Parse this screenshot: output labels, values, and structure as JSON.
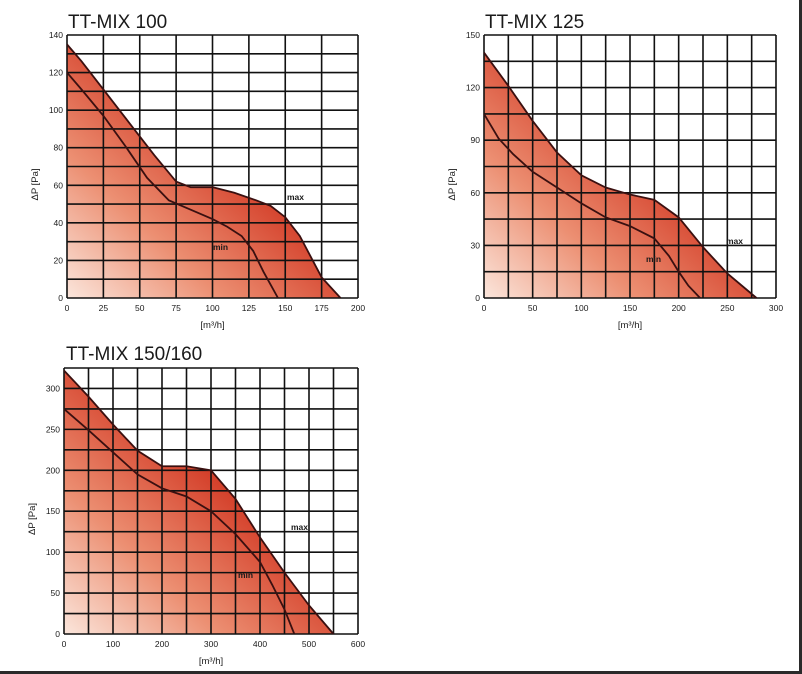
{
  "chart_data": [
    {
      "type": "area",
      "title": "TT-MIX 100",
      "xlabel": "[m³/h]",
      "ylabel": "ΔP [Pa]",
      "xlim": [
        0,
        200
      ],
      "ylim": [
        0,
        140
      ],
      "x_ticks": [
        0,
        25,
        50,
        75,
        100,
        125,
        150,
        175,
        200
      ],
      "y_ticks": [
        0,
        20,
        40,
        60,
        80,
        100,
        120,
        140
      ],
      "grid": true,
      "fill_gradient": [
        "#fbe6dc",
        "#d0321e"
      ],
      "series": [
        {
          "name": "max",
          "x": [
            0,
            10,
            25,
            50,
            60,
            75,
            85,
            100,
            115,
            130,
            140,
            150,
            160,
            175,
            188
          ],
          "y": [
            135,
            126,
            111,
            86,
            76,
            62,
            59,
            59,
            56,
            52,
            49,
            43,
            33,
            11,
            0
          ]
        },
        {
          "name": "min",
          "x": [
            0,
            10,
            25,
            40,
            55,
            70,
            85,
            100,
            110,
            120,
            128,
            135,
            140,
            145
          ],
          "y": [
            120,
            111,
            97,
            81,
            64,
            52,
            47,
            42,
            38,
            33,
            25,
            14,
            7,
            0
          ]
        }
      ],
      "annotations": [
        "max",
        "min"
      ]
    },
    {
      "type": "area",
      "title": "TT-MIX 125",
      "xlabel": "[m³/h]",
      "ylabel": "ΔP [Pa]",
      "xlim": [
        0,
        300
      ],
      "ylim": [
        0,
        150
      ],
      "x_ticks": [
        0,
        50,
        100,
        150,
        200,
        250,
        300
      ],
      "y_ticks": [
        0,
        30,
        60,
        90,
        120,
        150
      ],
      "grid": true,
      "fill_gradient": [
        "#fbe6dc",
        "#d0321e"
      ],
      "series": [
        {
          "name": "max",
          "x": [
            0,
            25,
            50,
            75,
            100,
            125,
            150,
            175,
            200,
            225,
            250,
            280
          ],
          "y": [
            140,
            121,
            101,
            83,
            70,
            63,
            59,
            56,
            46,
            29,
            14,
            0
          ]
        },
        {
          "name": "min",
          "x": [
            0,
            15,
            30,
            50,
            75,
            100,
            125,
            150,
            175,
            190,
            200,
            210,
            222
          ],
          "y": [
            105,
            91,
            82,
            72,
            63,
            54,
            46,
            41,
            34,
            24,
            15,
            7,
            0
          ]
        }
      ],
      "annotations": [
        "max",
        "min"
      ]
    },
    {
      "type": "area",
      "title": "TT-MIX 150/160",
      "xlabel": "[m³/h]",
      "ylabel": "ΔP [Pa]",
      "xlim": [
        0,
        600
      ],
      "ylim": [
        0,
        325
      ],
      "x_ticks": [
        0,
        100,
        200,
        300,
        400,
        500,
        600
      ],
      "y_ticks": [
        0,
        50,
        100,
        150,
        200,
        250,
        300
      ],
      "grid": true,
      "fill_gradient": [
        "#fbe6dc",
        "#d0321e"
      ],
      "series": [
        {
          "name": "max",
          "x": [
            0,
            50,
            100,
            150,
            200,
            250,
            300,
            350,
            400,
            450,
            500,
            550
          ],
          "y": [
            322,
            290,
            256,
            224,
            205,
            205,
            200,
            165,
            118,
            75,
            35,
            0
          ]
        },
        {
          "name": "min",
          "x": [
            0,
            50,
            100,
            150,
            200,
            250,
            300,
            350,
            400,
            425,
            450,
            470
          ],
          "y": [
            275,
            249,
            222,
            195,
            178,
            168,
            150,
            122,
            88,
            60,
            30,
            0
          ]
        }
      ],
      "annotations": [
        "max",
        "min"
      ]
    }
  ]
}
